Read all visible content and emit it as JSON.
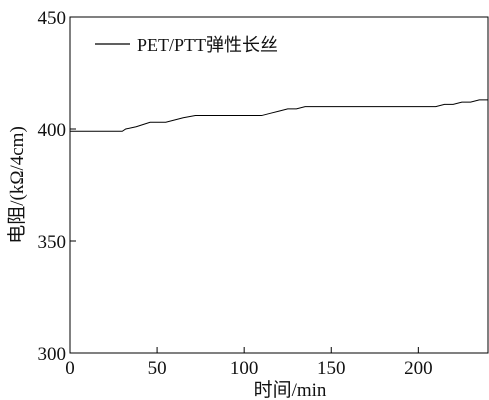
{
  "chart_data": {
    "type": "line",
    "xlabel": "时间/min",
    "ylabel": "电阻/(kΩ/4cm)",
    "xlim": [
      0,
      240
    ],
    "ylim": [
      300,
      450
    ],
    "x_ticks": [
      0,
      50,
      100,
      150,
      200
    ],
    "y_ticks": [
      300,
      350,
      400,
      450
    ],
    "grid": false,
    "legend_position": "top-left",
    "series": [
      {
        "name": "PET/PTT弹性长丝",
        "color": "#000000",
        "x": [
          0,
          30,
          32,
          38,
          42,
          46,
          55,
          60,
          65,
          72,
          80,
          95,
          110,
          115,
          120,
          125,
          130,
          135,
          140,
          150,
          160,
          180,
          200,
          210,
          215,
          220,
          225,
          230,
          235,
          240
        ],
        "y": [
          399,
          399,
          400,
          401,
          402,
          403,
          403,
          404,
          405,
          406,
          406,
          406,
          406,
          407,
          408,
          409,
          409,
          410,
          410,
          410,
          410,
          410,
          410,
          410,
          411,
          411,
          412,
          412,
          413,
          413
        ]
      }
    ]
  }
}
